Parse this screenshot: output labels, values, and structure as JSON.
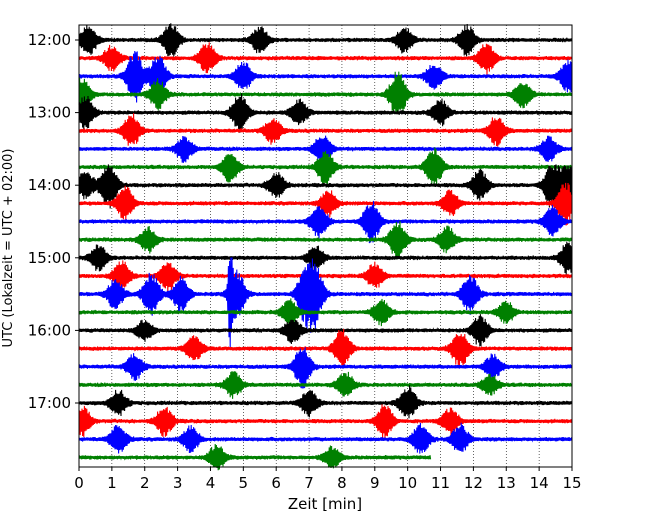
{
  "chart_data": {
    "type": "line",
    "xlabel": "Zeit  [min]",
    "ylabel": "UTC (Lokalzeit = UTC + 02:00)",
    "x_ticks": [
      "0",
      "1",
      "2",
      "3",
      "4",
      "5",
      "6",
      "7",
      "8",
      "9",
      "10",
      "11",
      "12",
      "13",
      "14",
      "15"
    ],
    "y_ticks": [
      "12:00",
      "13:00",
      "14:00",
      "15:00",
      "16:00",
      "17:00"
    ],
    "xlim": [
      0,
      15
    ],
    "row_minutes": 15,
    "grid": "vertical-dotted",
    "trace_colors": [
      "#000000",
      "#ff0000",
      "#0000ff",
      "#008000"
    ],
    "traces": [
      {
        "start": "12:00",
        "color": "#000000",
        "end_min": 15,
        "events": [
          {
            "t": 0.3,
            "amp": 0.35
          },
          {
            "t": 2.8,
            "amp": 0.4
          },
          {
            "t": 5.5,
            "amp": 0.3
          },
          {
            "t": 9.9,
            "amp": 0.3
          },
          {
            "t": 11.8,
            "amp": 0.35
          }
        ]
      },
      {
        "start": "12:15",
        "color": "#ff0000",
        "end_min": 15,
        "events": [
          {
            "t": 1.0,
            "amp": 0.3
          },
          {
            "t": 3.9,
            "amp": 0.35
          },
          {
            "t": 12.4,
            "amp": 0.35
          }
        ]
      },
      {
        "start": "12:30",
        "color": "#0000ff",
        "end_min": 15,
        "events": [
          {
            "t": 1.7,
            "amp": 0.6
          },
          {
            "t": 2.4,
            "amp": 0.5
          },
          {
            "t": 5.0,
            "amp": 0.35
          },
          {
            "t": 10.8,
            "amp": 0.3
          },
          {
            "t": 14.9,
            "amp": 0.4
          }
        ]
      },
      {
        "start": "12:45",
        "color": "#008000",
        "end_min": 15,
        "events": [
          {
            "t": 0.1,
            "amp": 0.4
          },
          {
            "t": 2.4,
            "amp": 0.35
          },
          {
            "t": 9.7,
            "amp": 0.55
          },
          {
            "t": 13.5,
            "amp": 0.3
          }
        ]
      },
      {
        "start": "13:00",
        "color": "#000000",
        "end_min": 15,
        "events": [
          {
            "t": 0.2,
            "amp": 0.4
          },
          {
            "t": 4.9,
            "amp": 0.45
          },
          {
            "t": 6.7,
            "amp": 0.3
          },
          {
            "t": 11.0,
            "amp": 0.3
          }
        ]
      },
      {
        "start": "13:15",
        "color": "#ff0000",
        "end_min": 15,
        "events": [
          {
            "t": 1.6,
            "amp": 0.4
          },
          {
            "t": 5.9,
            "amp": 0.3
          },
          {
            "t": 12.7,
            "amp": 0.35
          }
        ]
      },
      {
        "start": "13:30",
        "color": "#0000ff",
        "end_min": 15,
        "events": [
          {
            "t": 3.2,
            "amp": 0.3
          },
          {
            "t": 7.4,
            "amp": 0.35
          },
          {
            "t": 14.3,
            "amp": 0.3
          }
        ]
      },
      {
        "start": "13:45",
        "color": "#008000",
        "end_min": 15,
        "events": [
          {
            "t": 4.6,
            "amp": 0.35
          },
          {
            "t": 7.5,
            "amp": 0.4
          },
          {
            "t": 10.8,
            "amp": 0.45
          }
        ]
      },
      {
        "start": "14:00",
        "color": "#000000",
        "end_min": 15,
        "events": [
          {
            "t": 0.2,
            "amp": 0.35
          },
          {
            "t": 0.9,
            "amp": 0.55
          },
          {
            "t": 6.0,
            "amp": 0.3
          },
          {
            "t": 12.2,
            "amp": 0.35
          },
          {
            "t": 14.4,
            "amp": 0.55
          },
          {
            "t": 14.9,
            "amp": 0.5
          }
        ]
      },
      {
        "start": "14:15",
        "color": "#ff0000",
        "end_min": 15,
        "events": [
          {
            "t": 1.4,
            "amp": 0.4
          },
          {
            "t": 7.6,
            "amp": 0.3
          },
          {
            "t": 11.3,
            "amp": 0.3
          },
          {
            "t": 14.8,
            "amp": 0.5
          }
        ]
      },
      {
        "start": "14:30",
        "color": "#0000ff",
        "end_min": 15,
        "events": [
          {
            "t": 7.3,
            "amp": 0.4
          },
          {
            "t": 8.9,
            "amp": 0.5
          },
          {
            "t": 14.4,
            "amp": 0.35
          }
        ]
      },
      {
        "start": "14:45",
        "color": "#008000",
        "end_min": 15,
        "events": [
          {
            "t": 2.1,
            "amp": 0.3
          },
          {
            "t": 9.7,
            "amp": 0.45
          },
          {
            "t": 11.2,
            "amp": 0.3
          }
        ]
      },
      {
        "start": "15:00",
        "color": "#000000",
        "end_min": 15,
        "events": [
          {
            "t": 0.6,
            "amp": 0.3
          },
          {
            "t": 7.2,
            "amp": 0.3
          },
          {
            "t": 14.9,
            "amp": 0.4
          }
        ]
      },
      {
        "start": "15:15",
        "color": "#ff0000",
        "end_min": 15,
        "events": [
          {
            "t": 1.3,
            "amp": 0.35
          },
          {
            "t": 2.7,
            "amp": 0.35
          },
          {
            "t": 9.0,
            "amp": 0.3
          }
        ]
      },
      {
        "start": "15:30",
        "color": "#0000ff",
        "end_min": 15,
        "events": [
          {
            "t": 1.1,
            "amp": 0.35
          },
          {
            "t": 2.2,
            "amp": 0.5
          },
          {
            "t": 3.1,
            "amp": 0.4
          },
          {
            "t": 4.6,
            "amp": 1.0
          },
          {
            "t": 4.8,
            "amp": 0.55
          },
          {
            "t": 6.9,
            "amp": 0.65
          },
          {
            "t": 7.2,
            "amp": 0.6
          },
          {
            "t": 11.9,
            "amp": 0.45
          }
        ]
      },
      {
        "start": "15:45",
        "color": "#008000",
        "end_min": 15,
        "events": [
          {
            "t": 6.4,
            "amp": 0.3
          },
          {
            "t": 9.2,
            "amp": 0.3
          },
          {
            "t": 13.0,
            "amp": 0.25
          }
        ]
      },
      {
        "start": "16:00",
        "color": "#000000",
        "end_min": 15,
        "events": [
          {
            "t": 2.0,
            "amp": 0.25
          },
          {
            "t": 6.5,
            "amp": 0.3
          },
          {
            "t": 12.2,
            "amp": 0.35
          }
        ]
      },
      {
        "start": "16:15",
        "color": "#ff0000",
        "end_min": 15,
        "events": [
          {
            "t": 3.5,
            "amp": 0.3
          },
          {
            "t": 8.0,
            "amp": 0.45
          },
          {
            "t": 11.6,
            "amp": 0.45
          }
        ]
      },
      {
        "start": "16:30",
        "color": "#0000ff",
        "end_min": 15,
        "events": [
          {
            "t": 1.7,
            "amp": 0.3
          },
          {
            "t": 6.8,
            "amp": 0.5
          },
          {
            "t": 12.6,
            "amp": 0.3
          }
        ]
      },
      {
        "start": "16:45",
        "color": "#008000",
        "end_min": 15,
        "events": [
          {
            "t": 4.7,
            "amp": 0.3
          },
          {
            "t": 8.1,
            "amp": 0.3
          },
          {
            "t": 12.5,
            "amp": 0.25
          }
        ]
      },
      {
        "start": "17:00",
        "color": "#000000",
        "end_min": 15,
        "events": [
          {
            "t": 1.2,
            "amp": 0.3
          },
          {
            "t": 7.0,
            "amp": 0.3
          },
          {
            "t": 10.0,
            "amp": 0.4
          }
        ]
      },
      {
        "start": "17:15",
        "color": "#ff0000",
        "end_min": 15,
        "events": [
          {
            "t": 0.1,
            "amp": 0.35
          },
          {
            "t": 2.6,
            "amp": 0.35
          },
          {
            "t": 9.3,
            "amp": 0.4
          },
          {
            "t": 11.3,
            "amp": 0.3
          }
        ]
      },
      {
        "start": "17:30",
        "color": "#0000ff",
        "end_min": 15,
        "events": [
          {
            "t": 1.2,
            "amp": 0.35
          },
          {
            "t": 3.4,
            "amp": 0.3
          },
          {
            "t": 10.4,
            "amp": 0.35
          },
          {
            "t": 11.6,
            "amp": 0.35
          }
        ]
      },
      {
        "start": "17:45",
        "color": "#008000",
        "end_min": 10.7,
        "events": [
          {
            "t": 4.2,
            "amp": 0.3
          },
          {
            "t": 7.7,
            "amp": 0.25
          }
        ]
      }
    ]
  }
}
